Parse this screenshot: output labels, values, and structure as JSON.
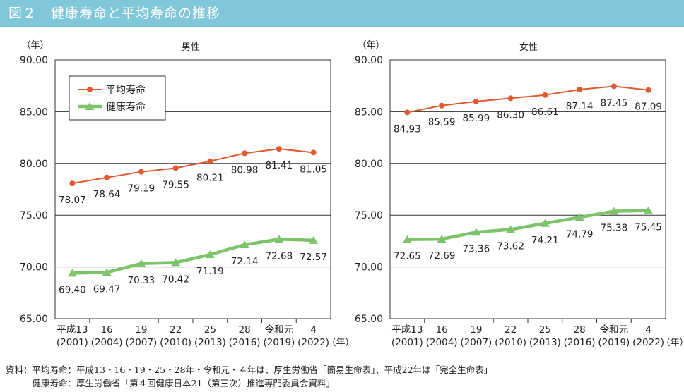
{
  "header": {
    "title": "図２　健康寿命と平均寿命の推移"
  },
  "chart_data": [
    {
      "type": "line",
      "title": "男性",
      "ylabel": "（年）",
      "xlabel": "（年）",
      "ylim": [
        65,
        90
      ],
      "yticks": [
        "65.00",
        "70.00",
        "75.00",
        "80.00",
        "85.00",
        "90.00"
      ],
      "grid": true,
      "legend_position": "top-left",
      "categories": [
        "平成13",
        "16",
        "19",
        "22",
        "25",
        "28",
        "令和元",
        "4"
      ],
      "categories_sub": [
        "(2001)",
        "(2004)",
        "(2007)",
        "(2010)",
        "(2013)",
        "(2016)",
        "(2019)",
        "(2022)"
      ],
      "series": [
        {
          "name": "平均寿命",
          "color": "#e05a30",
          "marker": "circle",
          "values": [
            78.07,
            78.64,
            79.19,
            79.55,
            80.21,
            80.98,
            81.41,
            81.05
          ],
          "labels": [
            "78.07",
            "78.64",
            "79.19",
            "79.55",
            "80.21",
            "80.98",
            "81.41",
            "81.05"
          ]
        },
        {
          "name": "健康寿命",
          "color": "#7cc36a",
          "marker": "triangle",
          "values": [
            69.4,
            69.47,
            70.33,
            70.42,
            71.19,
            72.14,
            72.68,
            72.57
          ],
          "labels": [
            "69.40",
            "69.47",
            "70.33",
            "70.42",
            "71.19",
            "72.14",
            "72.68",
            "72.57"
          ]
        }
      ]
    },
    {
      "type": "line",
      "title": "女性",
      "ylabel": "（年）",
      "xlabel": "（年）",
      "ylim": [
        65,
        90
      ],
      "yticks": [
        "65.00",
        "70.00",
        "75.00",
        "80.00",
        "85.00",
        "90.00"
      ],
      "grid": true,
      "categories": [
        "平成13",
        "16",
        "19",
        "22",
        "25",
        "28",
        "令和元",
        "4"
      ],
      "categories_sub": [
        "(2001)",
        "(2004)",
        "(2007)",
        "(2010)",
        "(2013)",
        "(2016)",
        "(2019)",
        "(2022)"
      ],
      "series": [
        {
          "color": "#e05a30",
          "marker": "circle",
          "values": [
            84.93,
            85.59,
            85.99,
            86.3,
            86.61,
            87.14,
            87.45,
            87.09
          ],
          "labels": [
            "84.93",
            "85.59",
            "85.99",
            "86.30",
            "86.61",
            "87.14",
            "87.45",
            "87.09"
          ]
        },
        {
          "color": "#7cc36a",
          "marker": "triangle",
          "values": [
            72.65,
            72.69,
            73.36,
            73.62,
            74.21,
            74.79,
            75.38,
            75.45
          ],
          "labels": [
            "72.65",
            "72.69",
            "73.36",
            "73.62",
            "74.21",
            "74.79",
            "75.38",
            "75.45"
          ]
        }
      ]
    }
  ],
  "source": {
    "line1": "資料：平均寿命：平成13・16・19・25・28年・令和元・４年は、厚生労働省「簡易生命表」、平成22年は「完全生命表」",
    "line2": "　　　健康寿命：厚生労働省「第４回健康日本21（第三次）推進専門委員会資料」"
  }
}
